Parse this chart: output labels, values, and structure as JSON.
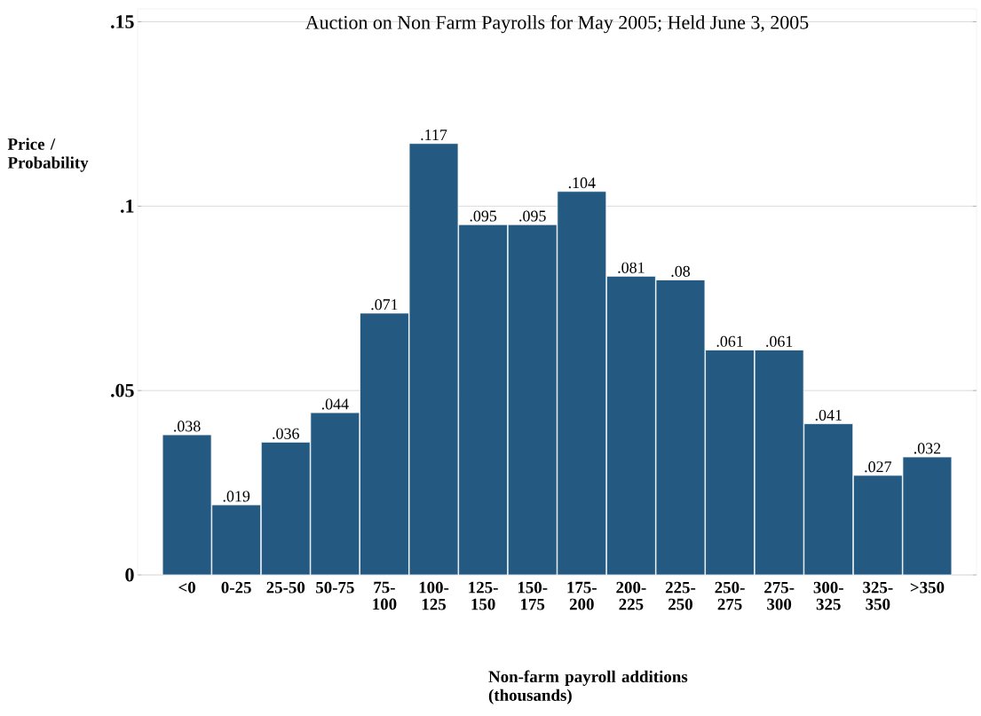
{
  "chart_data": {
    "type": "bar",
    "title": "Auction on Non Farm Payrolls for May 2005; Held June 3, 2005",
    "xlabel": "Non-farm payroll additions (thousands)",
    "ylabel": "Price / Probability",
    "categories": [
      "<0",
      "0-25",
      "25-50",
      "50-75",
      "75-100",
      "100-125",
      "125-150",
      "150-175",
      "175-200",
      "200-225",
      "225-250",
      "250-275",
      "275-300",
      "300-325",
      "325-350",
      ">350"
    ],
    "values": [
      0.038,
      0.019,
      0.036,
      0.044,
      0.071,
      0.117,
      0.095,
      0.095,
      0.104,
      0.081,
      0.08,
      0.061,
      0.061,
      0.041,
      0.027,
      0.032
    ],
    "value_labels": [
      ".038",
      ".019",
      ".036",
      ".044",
      ".071",
      ".117",
      ".095",
      ".095",
      ".104",
      ".081",
      ".08",
      ".061",
      ".061",
      ".041",
      ".027",
      ".032"
    ],
    "color": "#245a82",
    "ylim": [
      0,
      0.1535
    ],
    "yticks": [
      {
        "value": 0,
        "label": "0"
      },
      {
        "value": 0.05,
        "label": ".05"
      },
      {
        "value": 0.1,
        "label": ".1"
      },
      {
        "value": 0.15,
        "label": ".15"
      }
    ],
    "grid": "y"
  }
}
